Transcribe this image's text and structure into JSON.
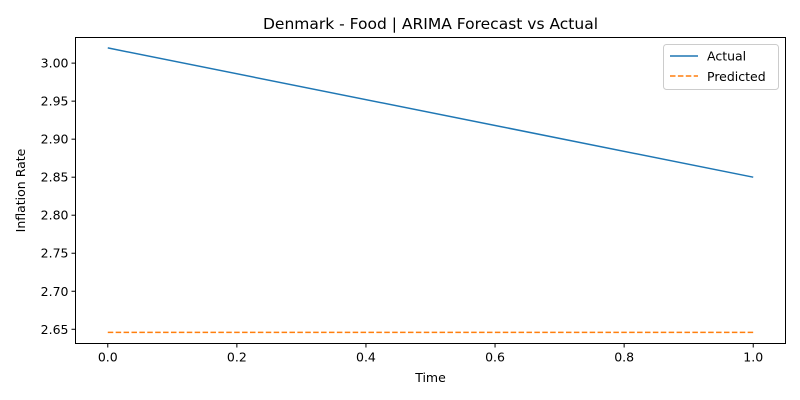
{
  "chart_data": {
    "type": "line",
    "title": "Denmark - Food | ARIMA Forecast vs Actual",
    "xlabel": "Time",
    "ylabel": "Inflation Rate",
    "xlim": [
      -0.05,
      1.05
    ],
    "ylim": [
      2.6313,
      3.0337
    ],
    "x_ticks": [
      0.0,
      0.2,
      0.4,
      0.6,
      0.8,
      1.0
    ],
    "x_tick_labels": [
      "0.0",
      "0.2",
      "0.4",
      "0.6",
      "0.8",
      "1.0"
    ],
    "y_ticks": [
      2.65,
      2.7,
      2.75,
      2.8,
      2.85,
      2.9,
      2.95,
      3.0
    ],
    "y_tick_labels": [
      "2.65",
      "2.70",
      "2.75",
      "2.80",
      "2.85",
      "2.90",
      "2.95",
      "3.00"
    ],
    "grid": false,
    "legend_position": "top-right",
    "series": [
      {
        "name": "Actual",
        "x": [
          0,
          1
        ],
        "values": [
          3.02,
          2.85
        ],
        "color": "#1f77b4",
        "style": "solid"
      },
      {
        "name": "Predicted",
        "x": [
          0,
          1
        ],
        "values": [
          2.646,
          2.646
        ],
        "color": "#ff7f0e",
        "style": "dashed"
      }
    ]
  }
}
